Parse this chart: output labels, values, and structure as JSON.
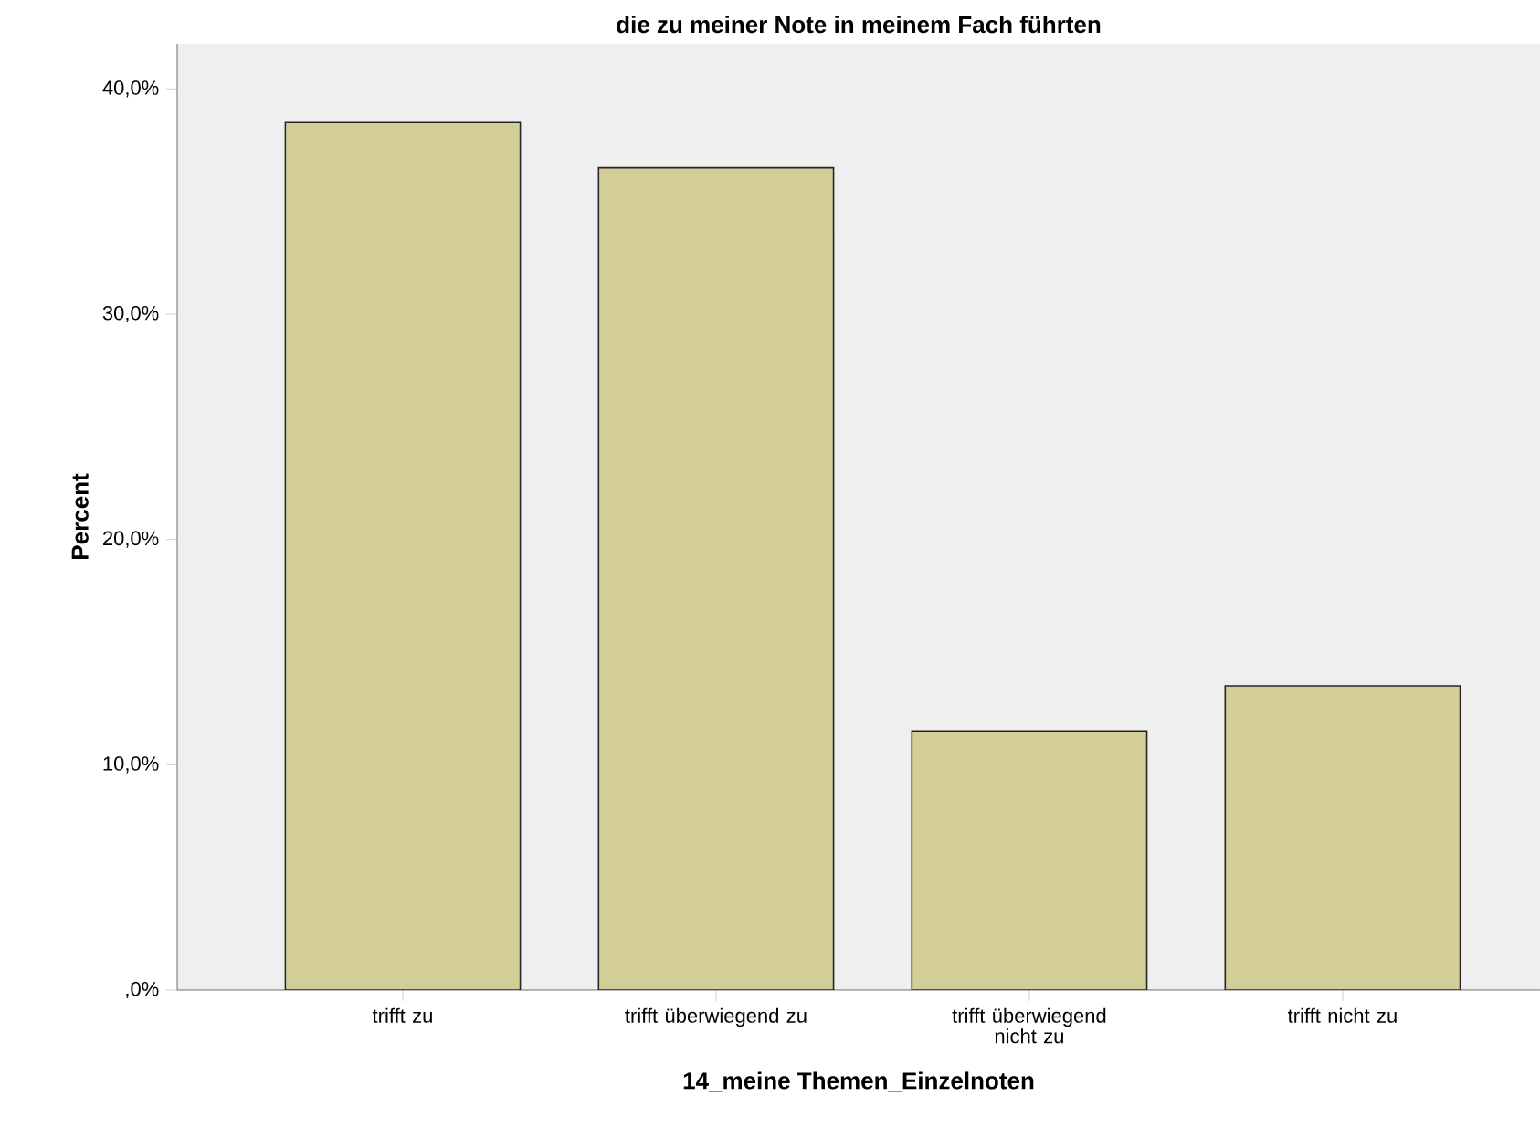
{
  "chart_data": {
    "type": "bar",
    "title": "die zu meiner Note in meinem Fach führten",
    "categories": [
      "trifft zu",
      "trifft überwiegend zu",
      "trifft überwiegend nicht zu",
      "trifft nicht zu"
    ],
    "values": [
      38.5,
      36.5,
      11.5,
      13.5
    ],
    "color": "#d3cd97",
    "xlabel": "14_meine Themen_Einzelnoten",
    "ylabel": "Percent",
    "ylim": [
      0,
      42
    ],
    "yticks": [
      {
        "value": 0,
        "label": ",0%"
      },
      {
        "value": 10,
        "label": "10,0%"
      },
      {
        "value": 20,
        "label": "20,0%"
      },
      {
        "value": 30,
        "label": "30,0%"
      },
      {
        "value": 40,
        "label": "40,0%"
      }
    ],
    "grid": false
  }
}
